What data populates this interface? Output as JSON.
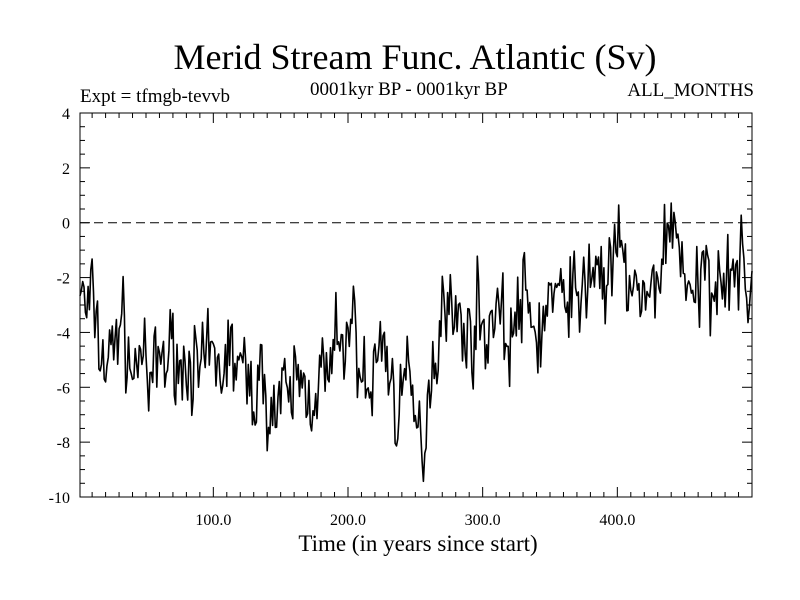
{
  "chart_data": {
    "type": "line",
    "title": "Merid Stream Func. Atlantic (Sv)",
    "subtitle_left": "Expt = tfmgb-tevvb",
    "subtitle_center": "0001kyr BP - 0001kyr BP",
    "subtitle_right": "ALL_MONTHS",
    "xlabel": "Time (in years since start)",
    "ylabel": "",
    "xlim": [
      1,
      500
    ],
    "ylim": [
      -10,
      4
    ],
    "x_ticks": [
      100,
      200,
      300,
      400
    ],
    "x_tick_labels": [
      "100.0",
      "200.0",
      "300.0",
      "400.0"
    ],
    "y_ticks": [
      -10,
      -8,
      -6,
      -4,
      -2,
      0,
      2,
      4
    ],
    "y_tick_labels": [
      "-10",
      "-8",
      "-6",
      "-4",
      "-2",
      "0",
      "2",
      "4"
    ],
    "reference_line": {
      "y": 0,
      "style": "dashed"
    },
    "line_color": "#000000",
    "series": [
      {
        "name": "Merid Stream Func. Atlantic",
        "x_start": 1,
        "x_step": 5,
        "values": [
          -2.2,
          -3.4,
          -2.6,
          -4.8,
          -5.2,
          -4.5,
          -3.3,
          -4.6,
          -5.8,
          -4.2,
          -6.3,
          -5.4,
          -4.8,
          -5.1,
          -4.3,
          -5.6,
          -4.9,
          -5.3,
          -5.8,
          -4.7,
          -5.1,
          -5.5,
          -4.6,
          -5.0,
          -5.4,
          -5.9,
          -6.2,
          -5.7,
          -6.5,
          -7.0,
          -6.1,
          -6.8,
          -5.5,
          -5.9,
          -6.4,
          -6.1,
          -5.4,
          -5.8,
          -4.2,
          -5.1,
          -3.2,
          -4.3,
          -5.6,
          -6.4,
          -5.1,
          -3.9,
          -5.7,
          -6.8,
          -5.8,
          -6.1,
          -7.5,
          -8.3,
          -5.4,
          -4.9,
          -2.1,
          -3.2,
          -3.8,
          -3.5,
          -4.6,
          -3.1,
          -4.2,
          -3.6,
          -2.8,
          -3.9,
          -4.4,
          -3.3,
          -2.7,
          -3.6,
          -4.2,
          -3.5,
          -2.4,
          -3.1,
          -2.6,
          -2.1,
          -3.3,
          -2.3,
          -1.7,
          -1.4,
          -2.4,
          -1.8,
          -0.8,
          -1.9,
          -2.1,
          -2.8,
          -3.2,
          -2.5,
          -1.7,
          -0.6,
          0.1,
          -0.7,
          -1.9,
          -3.3,
          -2.4,
          -1.6,
          -2.6,
          -1.2,
          -2.0,
          -1.3,
          -1.7,
          -2.2
        ],
        "note": "values are per 5-year samples read from the plotted curve"
      }
    ]
  }
}
